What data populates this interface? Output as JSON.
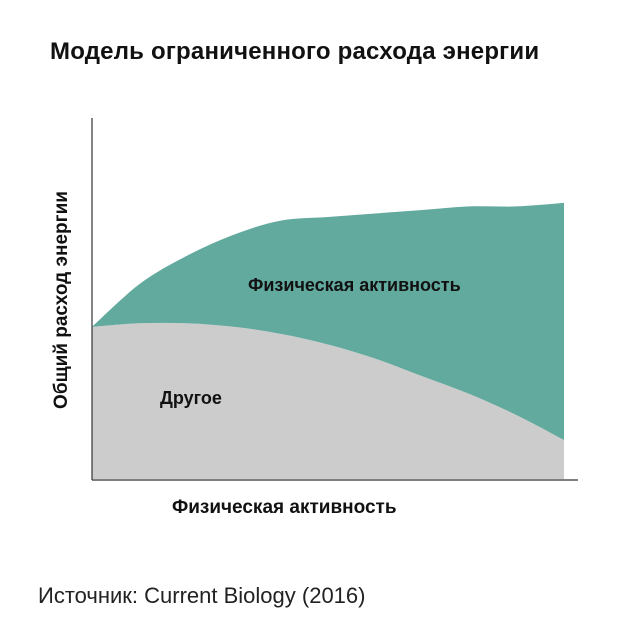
{
  "chart_data": {
    "type": "area",
    "title": "Модель ограниченного расхода энергии",
    "xlabel": "Физическая активность",
    "ylabel": "Общий расход энергии",
    "grid": false,
    "x": [
      0,
      10,
      20,
      30,
      40,
      50,
      60,
      70,
      80,
      90,
      100
    ],
    "xlim": [
      0,
      100
    ],
    "ylim": [
      0,
      100
    ],
    "series": [
      {
        "name": "Другое",
        "color": "#cccccc",
        "values": [
          43,
          44,
          44,
          43,
          41,
          38,
          34,
          29,
          24,
          18,
          11
        ]
      },
      {
        "name": "Физическая активность",
        "color": "#62a99e",
        "values": [
          0,
          11,
          19,
          26,
          32,
          36,
          41,
          47,
          53,
          59,
          67
        ]
      }
    ]
  },
  "source": "Источник: Current Biology (2016)"
}
